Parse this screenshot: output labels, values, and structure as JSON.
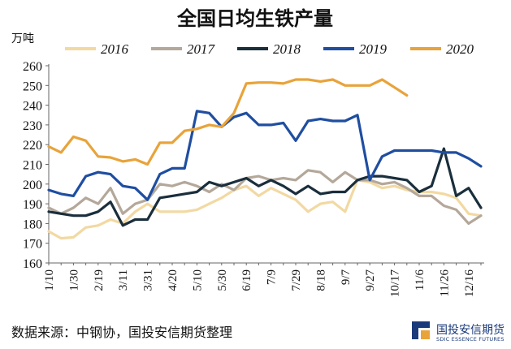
{
  "chart_data": {
    "type": "line",
    "title": "全国日均生铁产量",
    "ylabel": "万吨",
    "xlabel": "",
    "ylim": [
      160,
      260
    ],
    "yticks": [
      160,
      170,
      180,
      190,
      200,
      210,
      220,
      230,
      240,
      250,
      260
    ],
    "x_tick_labels": [
      "1/10",
      "1/30",
      "2/19",
      "3/11",
      "3/31",
      "4/20",
      "5/10",
      "5/30",
      "6/19",
      "7/9",
      "7/29",
      "8/18",
      "9/7",
      "9/27",
      "10/17",
      "11/6",
      "11/26",
      "12/16"
    ],
    "grid": false,
    "legend_position": "top",
    "series": [
      {
        "name": "2016",
        "color": "#f2d9a2",
        "values": [
          176,
          172.5,
          173,
          178,
          179,
          182,
          180,
          186,
          190,
          186,
          186,
          186,
          187,
          190,
          193,
          197,
          199,
          194,
          198,
          195,
          192,
          186,
          190,
          191,
          186,
          202,
          201,
          198,
          199,
          197,
          196,
          196,
          195,
          193,
          185,
          184
        ]
      },
      {
        "name": "2017",
        "color": "#b4a89a",
        "values": [
          188,
          185,
          188,
          193,
          190,
          198,
          185,
          190,
          192,
          200,
          199,
          201,
          199,
          196,
          200,
          197,
          203,
          204,
          202,
          203,
          202,
          207,
          206,
          201,
          206,
          202,
          202,
          200,
          201,
          198,
          194,
          194,
          189,
          187,
          180,
          184
        ]
      },
      {
        "name": "2018",
        "color": "#1a2e3c",
        "values": [
          186,
          185,
          184,
          184,
          186,
          191,
          179,
          182,
          182,
          193,
          194,
          195,
          196,
          201,
          199,
          201,
          203,
          199,
          202,
          199,
          195,
          199,
          195,
          196,
          196,
          202,
          204,
          204,
          203,
          202,
          196,
          199,
          218,
          194,
          198,
          188
        ]
      },
      {
        "name": "2019",
        "color": "#1f4ea1",
        "values": [
          197,
          195,
          194,
          204,
          206,
          205,
          199,
          198,
          192,
          205,
          208,
          208,
          237,
          236,
          229,
          234,
          236,
          230,
          230,
          231,
          222,
          232,
          233,
          232,
          232,
          235,
          202,
          214,
          217,
          217,
          217,
          217,
          216,
          216,
          213,
          209
        ]
      },
      {
        "name": "2020",
        "color": "#e8a33a",
        "values": [
          219,
          216,
          224,
          222,
          214,
          213.5,
          211.5,
          212.5,
          210,
          221,
          221,
          227,
          228,
          230,
          229,
          236,
          251,
          251.5,
          251.5,
          251,
          253,
          253,
          252,
          253,
          250,
          250,
          250,
          253,
          249,
          245
        ]
      }
    ]
  },
  "legend_items": [
    {
      "label": "2016"
    },
    {
      "label": "2017"
    },
    {
      "label": "2018"
    },
    {
      "label": "2019"
    },
    {
      "label": "2020"
    }
  ],
  "footer": {
    "source": "数据来源：中钢协，国投安信期货整理",
    "logo_cn": "国投安信期货",
    "logo_en": "SDIC ESSENCE FUTURES"
  }
}
